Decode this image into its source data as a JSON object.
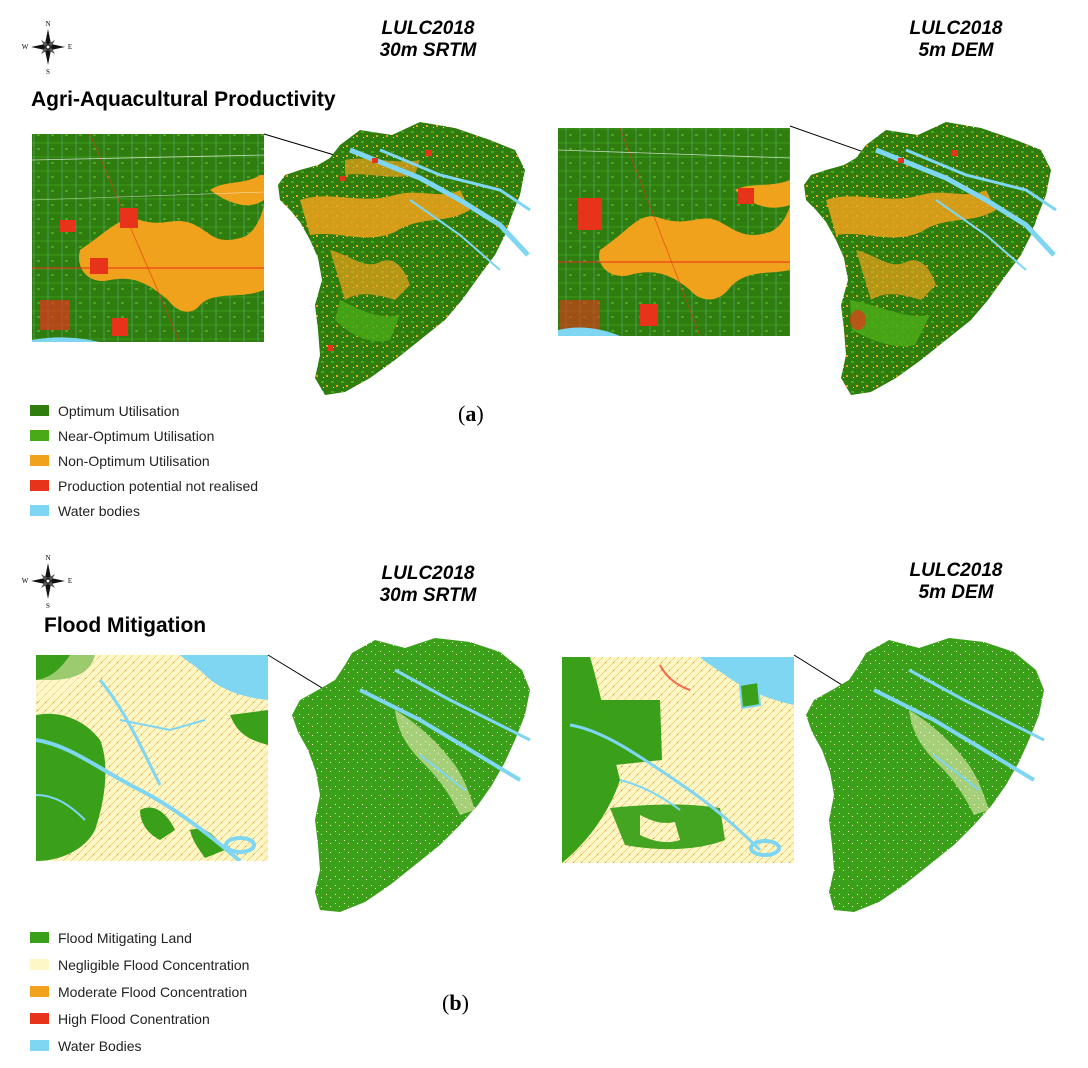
{
  "compass": {
    "n": "N",
    "s": "S",
    "e": "E",
    "w": "W"
  },
  "panel_a": {
    "section_title": "Agri-Aquacultural Productivity",
    "col1_title_line1": "LULC2018",
    "col1_title_line2": "30m SRTM",
    "col2_title_line1": "LULC2018",
    "col2_title_line2": "5m DEM",
    "label": "a",
    "legend": [
      {
        "label": "Optimum Utilisation",
        "color": "#2e7d0e"
      },
      {
        "label": "Near-Optimum Utilisation",
        "color": "#4aa917"
      },
      {
        "label": "Non-Optimum Utilisation",
        "color": "#f0a21c"
      },
      {
        "label": "Production potential not realised",
        "color": "#e8331b"
      },
      {
        "label": "Water bodies",
        "color": "#7fd6f2"
      }
    ]
  },
  "panel_b": {
    "section_title": "Flood Mitigation",
    "col1_title_line1": "LULC2018",
    "col1_title_line2": "30m SRTM",
    "col2_title_line1": "LULC2018",
    "col2_title_line2": "5m DEM",
    "label": "b",
    "legend": [
      {
        "label": "Flood Mitigating Land",
        "color": "#3aa019"
      },
      {
        "label": "Negligible Flood Concentration",
        "color": "#fdf6c6"
      },
      {
        "label": "Moderate Flood Concentration",
        "color": "#f0a21c"
      },
      {
        "label": "High Flood Conentration",
        "color": "#e8331b"
      },
      {
        "label": "Water Bodies",
        "color": "#7fd6f2"
      }
    ]
  }
}
